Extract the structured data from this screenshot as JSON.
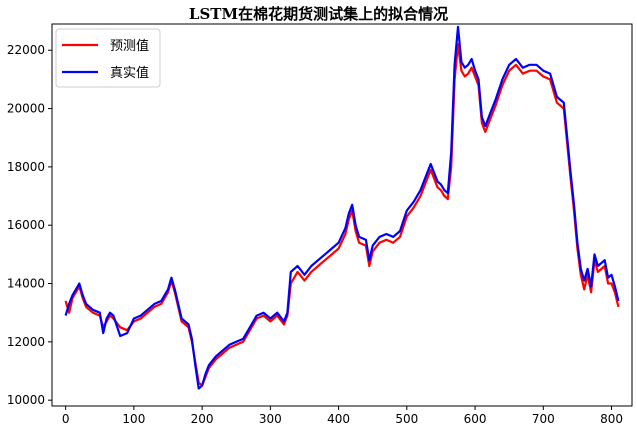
{
  "chart_data": {
    "type": "line",
    "title": "LSTM在棉花期货测试集上的拟合情况",
    "xlabel": "",
    "ylabel": "",
    "xlim": [
      -20,
      830
    ],
    "ylim": [
      9800,
      22900
    ],
    "x_ticks": [
      0,
      100,
      200,
      300,
      400,
      500,
      600,
      700,
      800
    ],
    "y_ticks": [
      10000,
      12000,
      14000,
      16000,
      18000,
      20000,
      22000
    ],
    "grid": false,
    "legend_position": "top-left",
    "series": [
      {
        "name": "预测值",
        "color": "#ff0000",
        "points": [
          [
            0,
            13400
          ],
          [
            5,
            13000
          ],
          [
            10,
            13500
          ],
          [
            15,
            13700
          ],
          [
            20,
            13900
          ],
          [
            25,
            13500
          ],
          [
            30,
            13200
          ],
          [
            40,
            13000
          ],
          [
            50,
            12900
          ],
          [
            55,
            12500
          ],
          [
            60,
            12700
          ],
          [
            65,
            12900
          ],
          [
            70,
            12800
          ],
          [
            80,
            12500
          ],
          [
            90,
            12400
          ],
          [
            100,
            12700
          ],
          [
            110,
            12800
          ],
          [
            120,
            13000
          ],
          [
            130,
            13200
          ],
          [
            140,
            13300
          ],
          [
            150,
            13700
          ],
          [
            155,
            14100
          ],
          [
            160,
            13700
          ],
          [
            165,
            13200
          ],
          [
            170,
            12700
          ],
          [
            180,
            12500
          ],
          [
            185,
            12000
          ],
          [
            190,
            11300
          ],
          [
            195,
            10600
          ],
          [
            200,
            10500
          ],
          [
            205,
            10800
          ],
          [
            210,
            11100
          ],
          [
            220,
            11400
          ],
          [
            230,
            11600
          ],
          [
            240,
            11800
          ],
          [
            250,
            11900
          ],
          [
            260,
            12000
          ],
          [
            270,
            12400
          ],
          [
            280,
            12800
          ],
          [
            290,
            12900
          ],
          [
            300,
            12700
          ],
          [
            310,
            12900
          ],
          [
            320,
            12600
          ],
          [
            325,
            12900
          ],
          [
            330,
            14000
          ],
          [
            340,
            14400
          ],
          [
            350,
            14100
          ],
          [
            360,
            14400
          ],
          [
            370,
            14600
          ],
          [
            380,
            14800
          ],
          [
            390,
            15000
          ],
          [
            400,
            15200
          ],
          [
            410,
            15700
          ],
          [
            415,
            16200
          ],
          [
            420,
            16500
          ],
          [
            425,
            15800
          ],
          [
            430,
            15400
          ],
          [
            440,
            15300
          ],
          [
            445,
            14600
          ],
          [
            450,
            15100
          ],
          [
            460,
            15400
          ],
          [
            470,
            15500
          ],
          [
            480,
            15400
          ],
          [
            490,
            15600
          ],
          [
            500,
            16300
          ],
          [
            510,
            16600
          ],
          [
            520,
            17000
          ],
          [
            530,
            17600
          ],
          [
            535,
            17900
          ],
          [
            540,
            17600
          ],
          [
            545,
            17300
          ],
          [
            550,
            17200
          ],
          [
            555,
            17000
          ],
          [
            560,
            16900
          ],
          [
            565,
            18000
          ],
          [
            570,
            21000
          ],
          [
            575,
            22200
          ],
          [
            580,
            21300
          ],
          [
            585,
            21100
          ],
          [
            590,
            21200
          ],
          [
            595,
            21400
          ],
          [
            600,
            21100
          ],
          [
            605,
            20800
          ],
          [
            610,
            19500
          ],
          [
            615,
            19200
          ],
          [
            620,
            19500
          ],
          [
            630,
            20100
          ],
          [
            640,
            20800
          ],
          [
            650,
            21300
          ],
          [
            660,
            21500
          ],
          [
            670,
            21200
          ],
          [
            680,
            21300
          ],
          [
            690,
            21300
          ],
          [
            700,
            21100
          ],
          [
            710,
            21000
          ],
          [
            720,
            20200
          ],
          [
            730,
            20000
          ],
          [
            740,
            17600
          ],
          [
            745,
            16500
          ],
          [
            750,
            15200
          ],
          [
            755,
            14300
          ],
          [
            760,
            13800
          ],
          [
            765,
            14300
          ],
          [
            770,
            13700
          ],
          [
            775,
            14800
          ],
          [
            780,
            14400
          ],
          [
            790,
            14600
          ],
          [
            795,
            14000
          ],
          [
            800,
            14000
          ],
          [
            805,
            13700
          ],
          [
            810,
            13200
          ]
        ]
      },
      {
        "name": "真实值",
        "color": "#0000ff",
        "points": [
          [
            0,
            12900
          ],
          [
            5,
            13300
          ],
          [
            10,
            13600
          ],
          [
            15,
            13800
          ],
          [
            20,
            14000
          ],
          [
            25,
            13600
          ],
          [
            30,
            13300
          ],
          [
            40,
            13100
          ],
          [
            50,
            13000
          ],
          [
            55,
            12300
          ],
          [
            60,
            12800
          ],
          [
            65,
            13000
          ],
          [
            70,
            12900
          ],
          [
            80,
            12200
          ],
          [
            90,
            12300
          ],
          [
            100,
            12800
          ],
          [
            110,
            12900
          ],
          [
            120,
            13100
          ],
          [
            130,
            13300
          ],
          [
            140,
            13400
          ],
          [
            150,
            13800
          ],
          [
            155,
            14200
          ],
          [
            160,
            13800
          ],
          [
            165,
            13300
          ],
          [
            170,
            12800
          ],
          [
            180,
            12600
          ],
          [
            185,
            12100
          ],
          [
            190,
            11200
          ],
          [
            195,
            10400
          ],
          [
            200,
            10500
          ],
          [
            205,
            10900
          ],
          [
            210,
            11200
          ],
          [
            220,
            11500
          ],
          [
            230,
            11700
          ],
          [
            240,
            11900
          ],
          [
            250,
            12000
          ],
          [
            260,
            12100
          ],
          [
            270,
            12500
          ],
          [
            280,
            12900
          ],
          [
            290,
            13000
          ],
          [
            300,
            12800
          ],
          [
            310,
            13000
          ],
          [
            320,
            12700
          ],
          [
            325,
            13000
          ],
          [
            330,
            14400
          ],
          [
            340,
            14600
          ],
          [
            350,
            14300
          ],
          [
            360,
            14600
          ],
          [
            370,
            14800
          ],
          [
            380,
            15000
          ],
          [
            390,
            15200
          ],
          [
            400,
            15400
          ],
          [
            410,
            15900
          ],
          [
            415,
            16400
          ],
          [
            420,
            16700
          ],
          [
            425,
            16000
          ],
          [
            430,
            15600
          ],
          [
            440,
            15500
          ],
          [
            445,
            14800
          ],
          [
            450,
            15300
          ],
          [
            460,
            15600
          ],
          [
            470,
            15700
          ],
          [
            480,
            15600
          ],
          [
            490,
            15800
          ],
          [
            500,
            16500
          ],
          [
            510,
            16800
          ],
          [
            520,
            17200
          ],
          [
            530,
            17800
          ],
          [
            535,
            18100
          ],
          [
            540,
            17800
          ],
          [
            545,
            17500
          ],
          [
            550,
            17400
          ],
          [
            555,
            17200
          ],
          [
            560,
            17100
          ],
          [
            565,
            18500
          ],
          [
            570,
            21500
          ],
          [
            575,
            22800
          ],
          [
            580,
            21600
          ],
          [
            585,
            21400
          ],
          [
            590,
            21500
          ],
          [
            595,
            21700
          ],
          [
            600,
            21300
          ],
          [
            605,
            21000
          ],
          [
            610,
            19700
          ],
          [
            615,
            19400
          ],
          [
            620,
            19700
          ],
          [
            630,
            20300
          ],
          [
            640,
            21000
          ],
          [
            650,
            21500
          ],
          [
            660,
            21700
          ],
          [
            670,
            21400
          ],
          [
            680,
            21500
          ],
          [
            690,
            21500
          ],
          [
            700,
            21300
          ],
          [
            710,
            21200
          ],
          [
            720,
            20400
          ],
          [
            730,
            20200
          ],
          [
            740,
            17800
          ],
          [
            745,
            16700
          ],
          [
            750,
            15400
          ],
          [
            755,
            14500
          ],
          [
            760,
            14100
          ],
          [
            765,
            14500
          ],
          [
            770,
            13900
          ],
          [
            775,
            15000
          ],
          [
            780,
            14600
          ],
          [
            790,
            14800
          ],
          [
            795,
            14200
          ],
          [
            800,
            14300
          ],
          [
            805,
            13900
          ],
          [
            810,
            13400
          ]
        ]
      }
    ]
  }
}
